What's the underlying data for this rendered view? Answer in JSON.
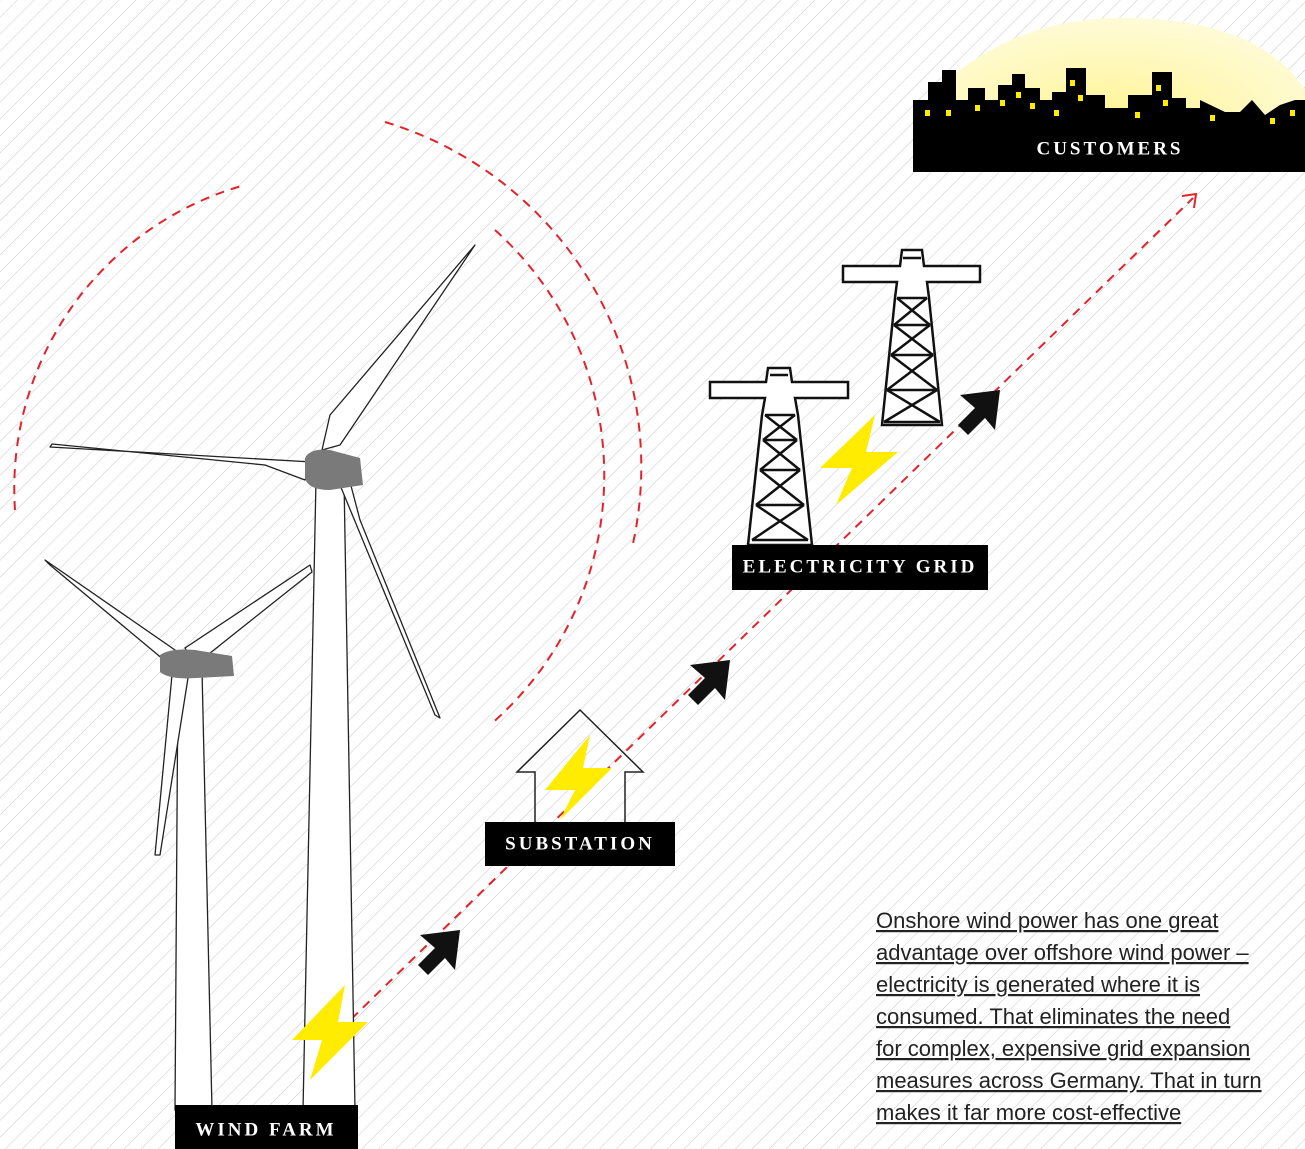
{
  "labels": {
    "customers": "CUSTOMERS",
    "electricity_grid": "ELECTRICITY GRID",
    "substation": "SUBSTATION",
    "wind_farm": "WIND FARM"
  },
  "paragraph": {
    "lines": [
      "Onshore wind power has one great",
      "advantage over offshore wind power –",
      "electricity is generated where it is",
      "consumed. That eliminates the need",
      "for complex, expensive grid expansion",
      "measures across Germany. That in turn",
      "makes it far more cost-effective"
    ]
  }
}
